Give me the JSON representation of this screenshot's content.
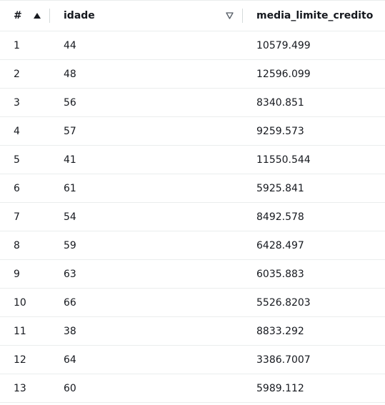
{
  "table": {
    "headers": {
      "index": "#",
      "age": "idade",
      "value": "media_limite_credito"
    },
    "sort": {
      "index_icon": "sort-ascending-icon",
      "age_icon": "sort-neutral-icon"
    },
    "rows": [
      {
        "index": "1",
        "age": "44",
        "value": "10579.499"
      },
      {
        "index": "2",
        "age": "48",
        "value": "12596.099"
      },
      {
        "index": "3",
        "age": "56",
        "value": "8340.851"
      },
      {
        "index": "4",
        "age": "57",
        "value": "9259.573"
      },
      {
        "index": "5",
        "age": "41",
        "value": "11550.544"
      },
      {
        "index": "6",
        "age": "61",
        "value": "5925.841"
      },
      {
        "index": "7",
        "age": "54",
        "value": "8492.578"
      },
      {
        "index": "8",
        "age": "59",
        "value": "6428.497"
      },
      {
        "index": "9",
        "age": "63",
        "value": "6035.883"
      },
      {
        "index": "10",
        "age": "66",
        "value": "5526.8203"
      },
      {
        "index": "11",
        "age": "38",
        "value": "8833.292"
      },
      {
        "index": "12",
        "age": "64",
        "value": "3386.7007"
      },
      {
        "index": "13",
        "age": "60",
        "value": "5989.112"
      }
    ]
  }
}
